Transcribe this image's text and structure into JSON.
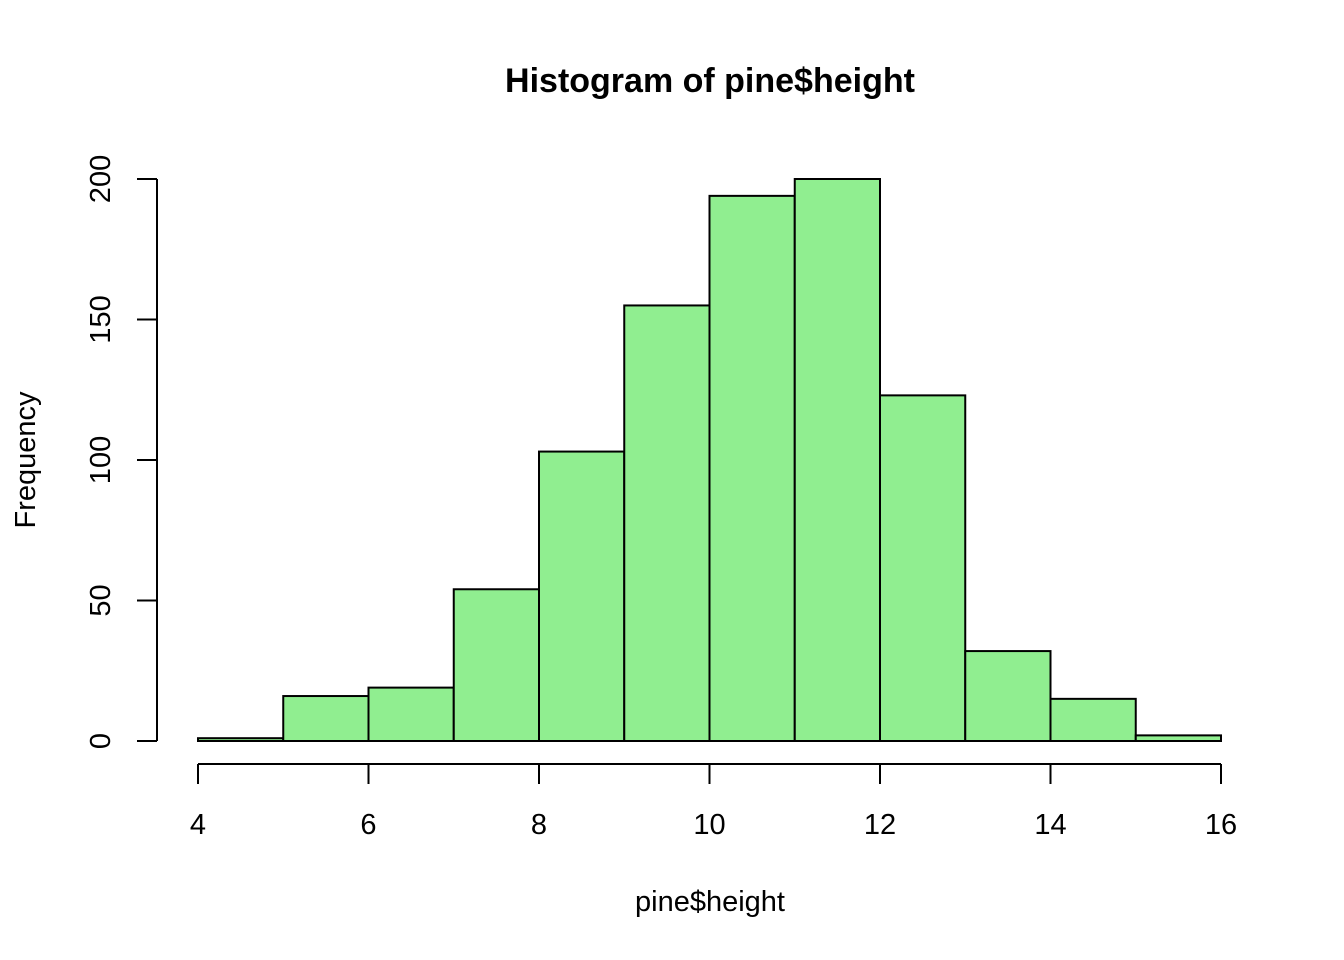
{
  "chart_data": {
    "type": "bar",
    "title": "Histogram of pine$height",
    "xlabel": "pine$height",
    "ylabel": "Frequency",
    "bin_edges": [
      4,
      5,
      6,
      7,
      8,
      9,
      10,
      11,
      12,
      13,
      14,
      15,
      16
    ],
    "values": [
      1,
      16,
      19,
      54,
      103,
      155,
      194,
      200,
      123,
      32,
      15,
      2
    ],
    "xlim": [
      4,
      16
    ],
    "ylim": [
      0,
      200
    ],
    "x_ticks": [
      4,
      6,
      8,
      10,
      12,
      14,
      16
    ],
    "y_ticks": [
      0,
      50,
      100,
      150,
      200
    ],
    "bar_color": "#90EE90",
    "grid": false,
    "legend": "none"
  }
}
